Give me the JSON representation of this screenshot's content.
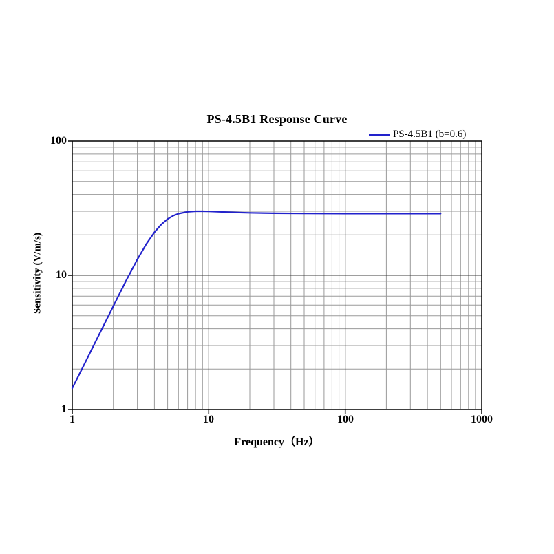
{
  "page": {
    "background": "#ffffff",
    "divider_color": "#c8c8c8"
  },
  "chart_data": {
    "type": "line",
    "title": "PS-4.5B1 Response Curve",
    "xlabel": "Frequency（Hz）",
    "ylabel": "Sensitivity (V/m/s)",
    "x_scale": "log",
    "y_scale": "log",
    "xlim": [
      1,
      1000
    ],
    "ylim": [
      1,
      100
    ],
    "x_ticks": [
      "1",
      "10",
      "100",
      "1000"
    ],
    "y_ticks": [
      "100",
      "10",
      "1"
    ],
    "grid": {
      "show": true,
      "minor": true,
      "minor_color": "#9a9a9a",
      "major_color": "#3c3c3c",
      "axis_color": "#000000"
    },
    "legend": {
      "position": "top-right",
      "entries": [
        {
          "label": "PS-4.5B1 (b=0.6)",
          "color": "#2222cc"
        }
      ]
    },
    "series": [
      {
        "name": "PS-4.5B1 (b=0.6)",
        "color": "#2222cc",
        "x": [
          1,
          1.2,
          1.5,
          2,
          2.5,
          3,
          3.5,
          4,
          4.5,
          5,
          5.5,
          6,
          7,
          8,
          8.5,
          9,
          10,
          12,
          15,
          20,
          30,
          50,
          70,
          100,
          200,
          300,
          500
        ],
        "y": [
          1.44,
          2.08,
          3.28,
          5.9,
          9.26,
          13.14,
          17.19,
          20.93,
          24.0,
          26.26,
          27.8,
          28.78,
          29.72,
          29.98,
          30.0,
          29.98,
          29.9,
          29.69,
          29.43,
          29.18,
          28.98,
          28.86,
          28.83,
          28.81,
          28.8,
          28.8,
          28.8
        ]
      }
    ]
  }
}
